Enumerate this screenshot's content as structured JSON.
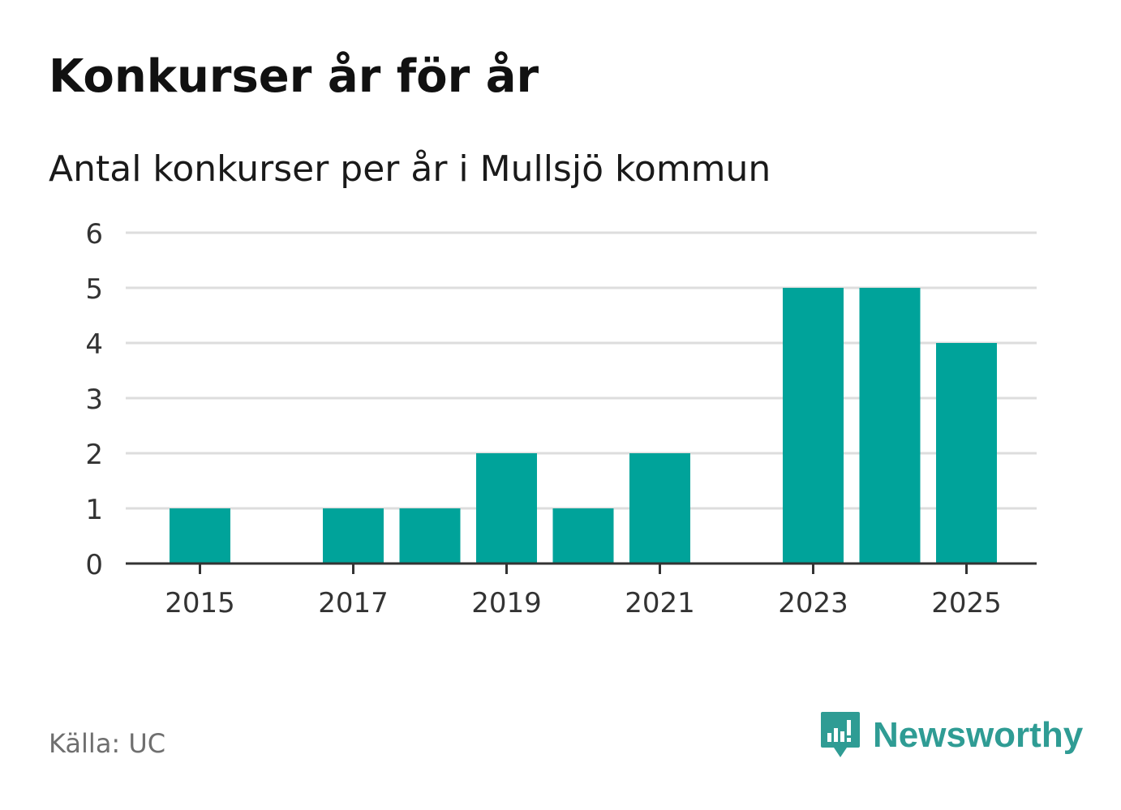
{
  "header": {
    "title": "Konkurser år för år",
    "subtitle": "Antal konkurser per år i Mullsjö kommun"
  },
  "footer": {
    "source": "Källa: UC",
    "brand_name": "Newsworthy",
    "brand_icon": "newsworthy-logo-icon"
  },
  "colors": {
    "bar": "#00a39a",
    "grid": "#dddddd",
    "axis": "#333333",
    "brand": "#2f9c94"
  },
  "chart_data": {
    "type": "bar",
    "categories": [
      "2015",
      "2016",
      "2017",
      "2018",
      "2019",
      "2020",
      "2021",
      "2022",
      "2023",
      "2024",
      "2025"
    ],
    "values": [
      1,
      0,
      1,
      1,
      2,
      1,
      2,
      0,
      5,
      5,
      4
    ],
    "x_tick_labels": [
      "2015",
      "2017",
      "2019",
      "2021",
      "2023",
      "2025"
    ],
    "y_ticks": [
      0,
      1,
      2,
      3,
      4,
      5,
      6
    ],
    "ylim": [
      0,
      6
    ],
    "xlabel": "",
    "ylabel": "",
    "grid": true,
    "legend": "none"
  }
}
